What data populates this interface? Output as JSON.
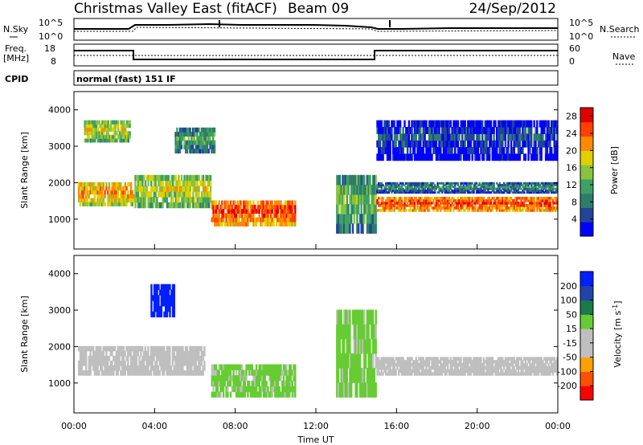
{
  "header": {
    "station": "Christmas Valley East (fitACF)",
    "beam": "Beam 09",
    "date": "24/Sep/2012"
  },
  "noise_panel": {
    "left_label": "N.Sky",
    "right_label": "N.Search",
    "tick_top": "10^5",
    "tick_bottom": "10^0"
  },
  "freq_panel": {
    "left_label_1": "Freq.",
    "left_label_2": "[MHz]",
    "right_label": "Nave",
    "left_ticks": [
      "18",
      "8"
    ],
    "right_ticks": [
      "60",
      "0"
    ]
  },
  "cpid": {
    "label": "CPID",
    "mode": "normal (fast) 151 IF"
  },
  "colors": {
    "power": [
      "#0000ff",
      "#224499",
      "#2e7d6b",
      "#3fa065",
      "#88c43c",
      "#e0d000",
      "#ff8a00",
      "#ff4000",
      "#e00000"
    ],
    "velocity": [
      "#0020ff",
      "#2244aa",
      "#1a7a4a",
      "#66cc33",
      "#bfbfbf",
      "#bfbfbf",
      "#ffa000",
      "#ff5000",
      "#ff0000"
    ],
    "ground_scatter": "#b8b8b8"
  },
  "chart_data": [
    {
      "type": "heatmap",
      "name": "power",
      "ylabel": "Slant Range [km]",
      "ylim": [
        180,
        4500
      ],
      "yticks": [
        1000,
        2000,
        3000,
        4000
      ],
      "xlim": [
        0,
        24
      ],
      "colorbar": {
        "label": "Power [dB]",
        "ticks": [
          4,
          8,
          12,
          16,
          20,
          24,
          28
        ],
        "range": [
          0,
          30
        ]
      },
      "features": [
        {
          "t_start": 0.2,
          "t_end": 3.0,
          "r_start": 1350,
          "r_end": 2000,
          "value": 22
        },
        {
          "t_start": 0.5,
          "t_end": 2.8,
          "r_start": 3100,
          "r_end": 3700,
          "value": 18
        },
        {
          "t_start": 3.0,
          "t_end": 6.8,
          "r_start": 1300,
          "r_end": 2200,
          "value": 18
        },
        {
          "t_start": 5.0,
          "t_end": 7.0,
          "r_start": 2800,
          "r_end": 3500,
          "value": 12
        },
        {
          "t_start": 6.8,
          "t_end": 11.0,
          "r_start": 800,
          "r_end": 1500,
          "value": 26
        },
        {
          "t_start": 13.0,
          "t_end": 15.0,
          "r_start": 600,
          "r_end": 2200,
          "value": 14
        },
        {
          "t_start": 15.0,
          "t_end": 24.0,
          "r_start": 1200,
          "r_end": 1600,
          "value": 26
        },
        {
          "t_start": 15.0,
          "t_end": 24.0,
          "r_start": 1700,
          "r_end": 2000,
          "value": 10
        },
        {
          "t_start": 15.0,
          "t_end": 24.0,
          "r_start": 2600,
          "r_end": 3700,
          "value": 6
        }
      ]
    },
    {
      "type": "heatmap",
      "name": "velocity",
      "ylabel": "Slant Range [km]",
      "ylim": [
        180,
        4500
      ],
      "yticks": [
        1000,
        2000,
        3000,
        4000
      ],
      "xlabel": "Time UT",
      "xlim": [
        0,
        24
      ],
      "xticks": [
        "00:00",
        "04:00",
        "08:00",
        "12:00",
        "16:00",
        "20:00",
        "00:00"
      ],
      "colorbar": {
        "label": "Velocity [m s^-1]",
        "ticks": [
          200,
          100,
          50,
          15,
          -15,
          -50,
          -100,
          -200
        ]
      },
      "features": [
        {
          "t_start": 0.2,
          "t_end": 6.5,
          "r_start": 1200,
          "r_end": 2000,
          "value": 0
        },
        {
          "t_start": 3.8,
          "t_end": 5.0,
          "r_start": 2800,
          "r_end": 3700,
          "value": 200
        },
        {
          "t_start": 6.8,
          "t_end": 11.0,
          "r_start": 600,
          "r_end": 1500,
          "value": 40
        },
        {
          "t_start": 13.0,
          "t_end": 15.0,
          "r_start": 600,
          "r_end": 3000,
          "value": 40
        },
        {
          "t_start": 15.0,
          "t_end": 24.0,
          "r_start": 1200,
          "r_end": 1700,
          "value": 0
        }
      ]
    }
  ]
}
